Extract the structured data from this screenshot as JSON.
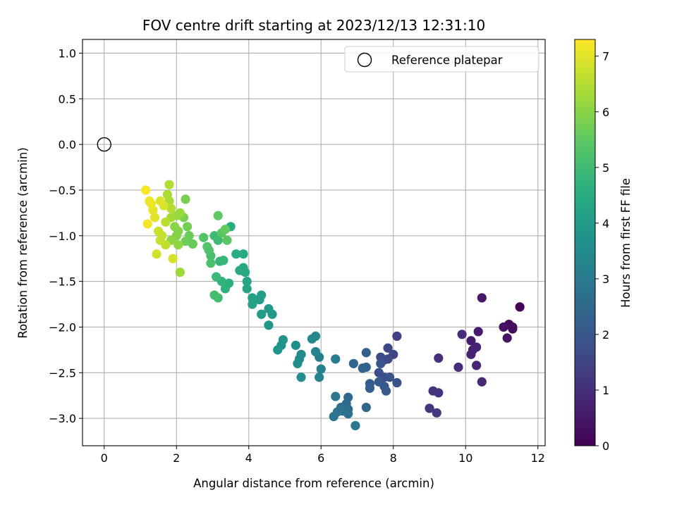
{
  "chart_data": {
    "type": "scatter",
    "title": "FOV centre drift starting at 2023/12/13 12:31:10",
    "xlabel": "Angular distance from reference (arcmin)",
    "ylabel": "Rotation from reference (arcmin)",
    "colorbar_label": "Hours from first FF file",
    "xlim": [
      -0.6,
      12.2
    ],
    "ylim": [
      -3.3,
      1.15
    ],
    "clim": [
      0,
      7.3
    ],
    "xticks": [
      0,
      2,
      4,
      6,
      8,
      10,
      12
    ],
    "yticks": [
      -3.0,
      -2.5,
      -2.0,
      -1.5,
      -1.0,
      -0.5,
      0.0,
      0.5,
      1.0
    ],
    "cticks": [
      0,
      1,
      2,
      3,
      4,
      5,
      6,
      7
    ],
    "xtick_labels": [
      "0",
      "2",
      "4",
      "6",
      "8",
      "10",
      "12"
    ],
    "ytick_labels": [
      "−3.0",
      "−2.5",
      "−2.0",
      "−1.5",
      "−1.0",
      "−0.5",
      "0.0",
      "0.5",
      "1.0"
    ],
    "ctick_labels": [
      "0",
      "1",
      "2",
      "3",
      "4",
      "5",
      "6",
      "7"
    ],
    "grid": true,
    "colormap": "viridis",
    "legend": {
      "label": "Reference platepar",
      "position": "top-right",
      "marker": "open-circle"
    },
    "reference_point": {
      "x": 0,
      "y": 0
    },
    "points": [
      [
        11.5,
        -1.78,
        0.05
      ],
      [
        11.3,
        -2.02,
        0.15
      ],
      [
        11.2,
        -1.97,
        0.2
      ],
      [
        11.3,
        -2.0,
        0.3
      ],
      [
        11.05,
        -2.0,
        0.35
      ],
      [
        11.15,
        -2.12,
        0.4
      ],
      [
        10.45,
        -1.68,
        0.5
      ],
      [
        10.35,
        -2.05,
        0.55
      ],
      [
        10.15,
        -2.15,
        0.6
      ],
      [
        10.2,
        -2.25,
        0.65
      ],
      [
        10.15,
        -2.3,
        0.7
      ],
      [
        10.3,
        -2.22,
        0.75
      ],
      [
        10.3,
        -2.42,
        0.8
      ],
      [
        10.45,
        -2.6,
        0.85
      ],
      [
        9.9,
        -2.08,
        0.9
      ],
      [
        9.8,
        -2.44,
        0.95
      ],
      [
        9.25,
        -2.34,
        1.0
      ],
      [
        9.1,
        -2.7,
        1.05
      ],
      [
        9.25,
        -2.72,
        1.1
      ],
      [
        9.0,
        -2.89,
        1.15
      ],
      [
        9.2,
        -2.94,
        1.2
      ],
      [
        8.1,
        -2.1,
        1.45
      ],
      [
        8.0,
        -2.3,
        1.5
      ],
      [
        7.85,
        -2.23,
        1.55
      ],
      [
        7.75,
        -2.36,
        1.6
      ],
      [
        7.85,
        -2.35,
        1.65
      ],
      [
        7.65,
        -2.33,
        1.7
      ],
      [
        7.6,
        -2.5,
        1.75
      ],
      [
        7.75,
        -2.55,
        1.8
      ],
      [
        7.9,
        -2.55,
        1.85
      ],
      [
        8.1,
        -2.61,
        1.9
      ],
      [
        7.65,
        -2.4,
        1.95
      ],
      [
        7.75,
        -2.65,
        2.0
      ],
      [
        7.8,
        -2.7,
        2.05
      ],
      [
        7.6,
        -2.6,
        2.1
      ],
      [
        7.35,
        -2.62,
        2.15
      ],
      [
        7.35,
        -2.67,
        2.2
      ],
      [
        7.25,
        -2.28,
        2.25
      ],
      [
        7.25,
        -2.44,
        2.3
      ],
      [
        7.15,
        -2.45,
        2.35
      ],
      [
        6.9,
        -2.4,
        2.4
      ],
      [
        7.25,
        -2.88,
        2.45
      ],
      [
        6.75,
        -2.77,
        2.5
      ],
      [
        6.75,
        -2.9,
        2.55
      ],
      [
        6.7,
        -2.84,
        2.6
      ],
      [
        6.55,
        -2.88,
        2.65
      ],
      [
        6.75,
        -2.95,
        2.7
      ],
      [
        6.6,
        -2.92,
        2.75
      ],
      [
        6.45,
        -2.93,
        2.8
      ],
      [
        6.35,
        -2.98,
        2.85
      ],
      [
        6.4,
        -2.76,
        2.9
      ],
      [
        6.95,
        -3.08,
        2.95
      ],
      [
        6.4,
        -2.35,
        3.05
      ],
      [
        5.95,
        -2.33,
        3.15
      ],
      [
        6.0,
        -2.46,
        3.2
      ],
      [
        5.95,
        -2.55,
        3.25
      ],
      [
        5.85,
        -2.27,
        3.3
      ],
      [
        5.85,
        -2.1,
        3.35
      ],
      [
        5.75,
        -2.13,
        3.4
      ],
      [
        5.45,
        -2.3,
        3.45
      ],
      [
        5.4,
        -2.35,
        3.5
      ],
      [
        5.35,
        -2.4,
        3.55
      ],
      [
        5.45,
        -2.55,
        3.6
      ],
      [
        5.3,
        -2.2,
        3.65
      ],
      [
        4.95,
        -2.14,
        3.7
      ],
      [
        4.9,
        -2.2,
        3.75
      ],
      [
        4.8,
        -2.25,
        3.8
      ],
      [
        4.55,
        -1.98,
        3.85
      ],
      [
        4.65,
        -1.86,
        3.9
      ],
      [
        4.55,
        -1.8,
        3.95
      ],
      [
        4.35,
        -1.86,
        4.0
      ],
      [
        4.3,
        -1.7,
        4.05
      ],
      [
        4.35,
        -1.65,
        4.1
      ],
      [
        4.1,
        -1.68,
        4.15
      ],
      [
        4.1,
        -1.75,
        4.2
      ],
      [
        3.95,
        -1.5,
        4.25
      ],
      [
        3.95,
        -1.58,
        4.3
      ],
      [
        3.9,
        -1.4,
        4.35
      ],
      [
        3.85,
        -1.35,
        4.4
      ],
      [
        3.75,
        -1.38,
        4.45
      ],
      [
        3.85,
        -1.2,
        4.5
      ],
      [
        3.65,
        -1.2,
        4.55
      ],
      [
        3.5,
        -0.9,
        4.6
      ],
      [
        3.45,
        -1.52,
        4.65
      ],
      [
        3.35,
        -1.58,
        4.7
      ],
      [
        3.25,
        -1.5,
        4.75
      ],
      [
        3.2,
        -1.28,
        4.8
      ],
      [
        3.3,
        -1.27,
        4.85
      ],
      [
        3.1,
        -1.45,
        4.9
      ],
      [
        3.15,
        -1.05,
        4.95
      ],
      [
        3.05,
        -1.0,
        5.0
      ],
      [
        3.15,
        -1.68,
        5.05
      ],
      [
        3.05,
        -1.65,
        5.1
      ],
      [
        2.95,
        -1.22,
        5.15
      ],
      [
        2.95,
        -1.3,
        5.2
      ],
      [
        2.9,
        -1.16,
        5.25
      ],
      [
        2.85,
        -1.12,
        5.3
      ],
      [
        2.75,
        -1.02,
        5.35
      ],
      [
        3.25,
        -0.97,
        5.4
      ],
      [
        3.4,
        -1.05,
        5.45
      ],
      [
        3.15,
        -0.78,
        5.5
      ],
      [
        3.35,
        -0.93,
        5.55
      ],
      [
        2.45,
        -1.09,
        5.6
      ],
      [
        2.35,
        -1.0,
        5.65
      ],
      [
        2.25,
        -1.06,
        5.7
      ],
      [
        2.3,
        -0.9,
        5.75
      ],
      [
        2.25,
        -0.6,
        5.8
      ],
      [
        2.2,
        -0.8,
        5.85
      ],
      [
        2.05,
        -0.95,
        5.9
      ],
      [
        2.0,
        -1.0,
        5.95
      ],
      [
        1.95,
        -0.9,
        6.0
      ],
      [
        1.85,
        -1.05,
        6.05
      ],
      [
        2.05,
        -1.1,
        6.1
      ],
      [
        2.0,
        -0.78,
        6.15
      ],
      [
        2.1,
        -0.75,
        6.2
      ],
      [
        2.1,
        -1.4,
        6.25
      ],
      [
        1.85,
        -0.8,
        6.3
      ],
      [
        1.8,
        -0.62,
        6.35
      ],
      [
        1.75,
        -0.55,
        6.4
      ],
      [
        1.8,
        -0.44,
        6.45
      ],
      [
        1.85,
        -0.7,
        6.5
      ],
      [
        1.7,
        -0.85,
        6.55
      ],
      [
        1.6,
        -1.0,
        6.6
      ],
      [
        1.7,
        -1.1,
        6.65
      ],
      [
        1.55,
        -1.05,
        6.7
      ],
      [
        1.5,
        -0.95,
        6.75
      ],
      [
        1.45,
        -1.2,
        6.8
      ],
      [
        1.9,
        -1.25,
        6.85
      ],
      [
        1.65,
        -0.67,
        6.9
      ],
      [
        1.55,
        -0.62,
        6.95
      ],
      [
        1.4,
        -0.8,
        7.0
      ],
      [
        1.35,
        -0.72,
        7.05
      ],
      [
        1.3,
        -0.65,
        7.1
      ],
      [
        1.25,
        -0.62,
        7.15
      ],
      [
        1.2,
        -0.87,
        7.2
      ],
      [
        1.15,
        -0.5,
        7.25
      ]
    ]
  }
}
